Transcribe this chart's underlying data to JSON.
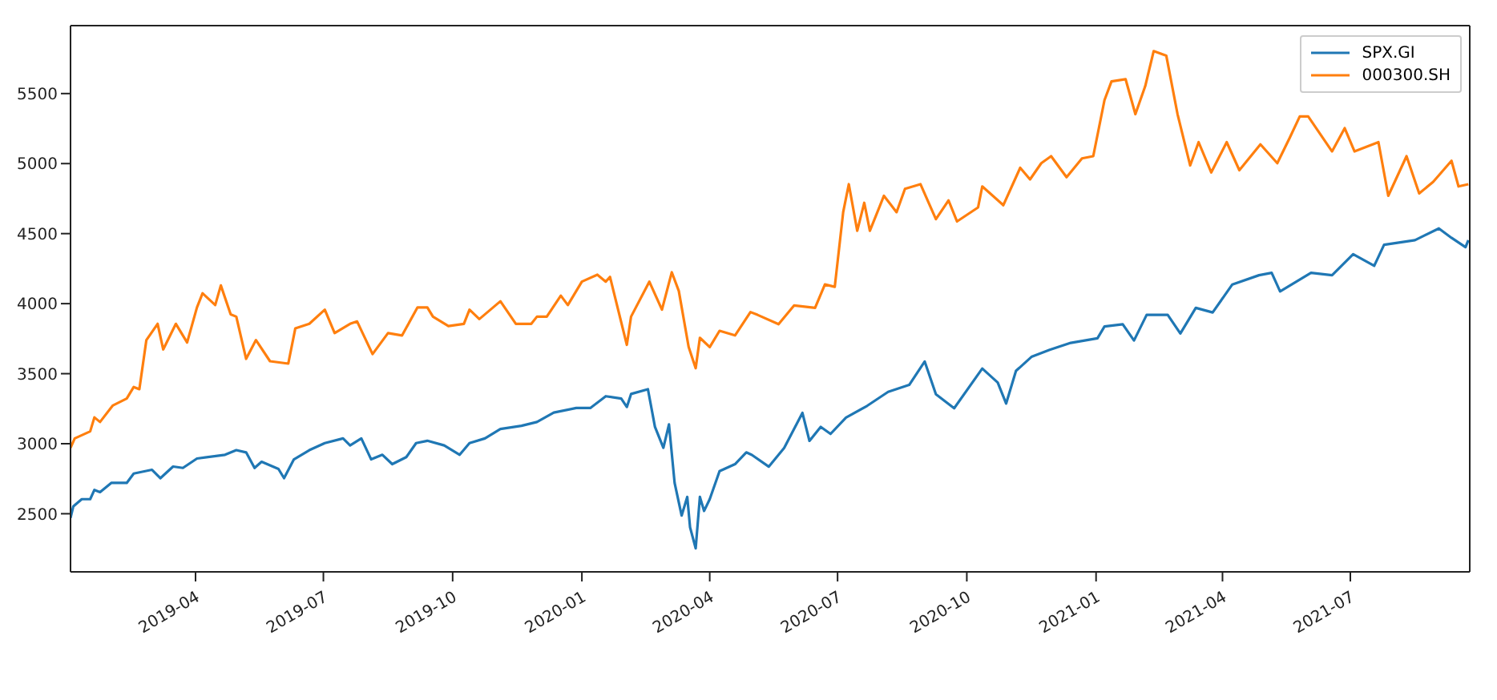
{
  "chart_data": {
    "type": "line",
    "xlim": [
      "2019-01-02",
      "2021-09-24"
    ],
    "ylim": [
      2085,
      5985
    ],
    "xticks": [
      {
        "value": "2019-04-01",
        "label": "2019-04"
      },
      {
        "value": "2019-07-01",
        "label": "2019-07"
      },
      {
        "value": "2019-10-01",
        "label": "2019-10"
      },
      {
        "value": "2020-01-01",
        "label": "2020-01"
      },
      {
        "value": "2020-04-01",
        "label": "2020-04"
      },
      {
        "value": "2020-07-01",
        "label": "2020-07"
      },
      {
        "value": "2020-10-01",
        "label": "2020-10"
      },
      {
        "value": "2021-01-01",
        "label": "2021-01"
      },
      {
        "value": "2021-04-01",
        "label": "2021-04"
      },
      {
        "value": "2021-07-01",
        "label": "2021-07"
      }
    ],
    "yticks": [
      2500,
      3000,
      3500,
      4000,
      4500,
      5000,
      5500
    ],
    "legend": "top right",
    "marker": "none",
    "line_style": "solid",
    "series": [
      {
        "name": "SPX.GI",
        "color": "#1f77b4",
        "x": [
          "2019-01-02",
          "2019-01-04",
          "2019-01-10",
          "2019-01-16",
          "2019-01-19",
          "2019-01-23",
          "2019-01-31",
          "2019-02-11",
          "2019-02-16",
          "2019-03-01",
          "2019-03-07",
          "2019-03-16",
          "2019-03-23",
          "2019-04-02",
          "2019-04-22",
          "2019-04-30",
          "2019-05-07",
          "2019-05-13",
          "2019-05-18",
          "2019-05-30",
          "2019-06-03",
          "2019-06-10",
          "2019-06-21",
          "2019-07-02",
          "2019-07-15",
          "2019-07-20",
          "2019-07-28",
          "2019-08-04",
          "2019-08-12",
          "2019-08-19",
          "2019-08-29",
          "2019-09-05",
          "2019-09-13",
          "2019-09-25",
          "2019-10-06",
          "2019-10-13",
          "2019-10-24",
          "2019-11-04",
          "2019-11-19",
          "2019-11-30",
          "2019-12-12",
          "2019-12-28",
          "2020-01-07",
          "2020-01-18",
          "2020-01-29",
          "2020-02-02",
          "2020-02-05",
          "2020-02-17",
          "2020-02-22",
          "2020-02-28",
          "2020-03-03",
          "2020-03-07",
          "2020-03-12",
          "2020-03-16",
          "2020-03-18",
          "2020-03-22",
          "2020-03-25",
          "2020-03-28",
          "2020-04-01",
          "2020-04-08",
          "2020-04-19",
          "2020-04-27",
          "2020-05-01",
          "2020-05-13",
          "2020-05-24",
          "2020-06-06",
          "2020-06-11",
          "2020-06-19",
          "2020-06-26",
          "2020-07-07",
          "2020-07-22",
          "2020-08-06",
          "2020-08-21",
          "2020-09-01",
          "2020-09-09",
          "2020-09-22",
          "2020-10-12",
          "2020-10-23",
          "2020-10-29",
          "2020-11-05",
          "2020-11-16",
          "2020-11-29",
          "2020-12-14",
          "2021-01-02",
          "2021-01-07",
          "2021-01-20",
          "2021-01-28",
          "2021-02-06",
          "2021-02-21",
          "2021-03-02",
          "2021-03-13",
          "2021-03-25",
          "2021-04-08",
          "2021-04-27",
          "2021-05-06",
          "2021-05-12",
          "2021-06-03",
          "2021-06-18",
          "2021-07-03",
          "2021-07-18",
          "2021-07-25",
          "2021-08-16",
          "2021-09-02",
          "2021-09-11",
          "2021-09-21",
          "2021-09-23"
        ],
        "values": [
          2470,
          2553,
          2604,
          2604,
          2670,
          2654,
          2720,
          2720,
          2787,
          2814,
          2754,
          2837,
          2827,
          2894,
          2921,
          2954,
          2938,
          2827,
          2871,
          2820,
          2754,
          2888,
          2954,
          3004,
          3038,
          2988,
          3038,
          2888,
          2921,
          2854,
          2904,
          3004,
          3021,
          2988,
          2921,
          3004,
          3038,
          3105,
          3128,
          3155,
          3222,
          3255,
          3255,
          3339,
          3322,
          3262,
          3355,
          3389,
          3121,
          2971,
          3138,
          2720,
          2487,
          2620,
          2403,
          2253,
          2620,
          2520,
          2604,
          2804,
          2854,
          2938,
          2920,
          2836,
          2970,
          3220,
          3020,
          3120,
          3070,
          3187,
          3270,
          3370,
          3420,
          3587,
          3353,
          3253,
          3537,
          3437,
          3287,
          3520,
          3620,
          3670,
          3720,
          3753,
          3837,
          3853,
          3737,
          3920,
          3920,
          3787,
          3970,
          3937,
          4137,
          4203,
          4220,
          4087,
          4220,
          4203,
          4353,
          4270,
          4420,
          4453,
          4537,
          4470,
          4403,
          4453
        ]
      },
      {
        "name": "000300.SH",
        "color": "#ff7f0e",
        "x": [
          "2019-01-02",
          "2019-01-05",
          "2019-01-16",
          "2019-01-19",
          "2019-01-23",
          "2019-02-01",
          "2019-02-11",
          "2019-02-16",
          "2019-02-20",
          "2019-02-25",
          "2019-03-05",
          "2019-03-09",
          "2019-03-18",
          "2019-03-26",
          "2019-04-02",
          "2019-04-06",
          "2019-04-15",
          "2019-04-19",
          "2019-04-26",
          "2019-04-30",
          "2019-05-07",
          "2019-05-14",
          "2019-05-24",
          "2019-06-06",
          "2019-06-11",
          "2019-06-21",
          "2019-07-02",
          "2019-07-09",
          "2019-07-20",
          "2019-07-25",
          "2019-08-05",
          "2019-08-16",
          "2019-08-26",
          "2019-09-06",
          "2019-09-13",
          "2019-09-17",
          "2019-09-28",
          "2019-10-09",
          "2019-10-13",
          "2019-10-20",
          "2019-11-04",
          "2019-11-15",
          "2019-11-26",
          "2019-11-30",
          "2019-12-07",
          "2019-12-17",
          "2019-12-22",
          "2020-01-01",
          "2020-01-12",
          "2020-01-18",
          "2020-01-21",
          "2020-02-02",
          "2020-02-05",
          "2020-02-18",
          "2020-02-27",
          "2020-03-05",
          "2020-03-10",
          "2020-03-17",
          "2020-03-22",
          "2020-03-25",
          "2020-04-01",
          "2020-04-08",
          "2020-04-19",
          "2020-04-30",
          "2020-05-05",
          "2020-05-20",
          "2020-05-31",
          "2020-06-15",
          "2020-06-22",
          "2020-06-29",
          "2020-07-05",
          "2020-07-09",
          "2020-07-15",
          "2020-07-20",
          "2020-07-24",
          "2020-08-03",
          "2020-08-12",
          "2020-08-18",
          "2020-08-29",
          "2020-09-09",
          "2020-09-18",
          "2020-09-24",
          "2020-10-09",
          "2020-10-12",
          "2020-10-27",
          "2020-11-08",
          "2020-11-15",
          "2020-11-23",
          "2020-11-30",
          "2020-12-11",
          "2020-12-22",
          "2020-12-30",
          "2021-01-07",
          "2021-01-12",
          "2021-01-22",
          "2021-01-29",
          "2021-02-05",
          "2021-02-11",
          "2021-02-20",
          "2021-02-28",
          "2021-03-09",
          "2021-03-15",
          "2021-03-24",
          "2021-04-04",
          "2021-04-13",
          "2021-04-28",
          "2021-05-10",
          "2021-05-19",
          "2021-05-26",
          "2021-06-01",
          "2021-06-18",
          "2021-06-27",
          "2021-07-04",
          "2021-07-21",
          "2021-07-28",
          "2021-08-10",
          "2021-08-19",
          "2021-08-29",
          "2021-09-11",
          "2021-09-16",
          "2021-09-23"
        ],
        "values": [
          2971,
          3038,
          3088,
          3188,
          3155,
          3272,
          3322,
          3405,
          3389,
          3740,
          3856,
          3673,
          3856,
          3723,
          3973,
          4074,
          3990,
          4130,
          3923,
          3907,
          3606,
          3740,
          3589,
          3572,
          3823,
          3856,
          3957,
          3790,
          3856,
          3873,
          3640,
          3790,
          3773,
          3973,
          3973,
          3907,
          3840,
          3856,
          3957,
          3890,
          4017,
          3856,
          3856,
          3907,
          3907,
          4057,
          3990,
          4157,
          4207,
          4157,
          4191,
          3706,
          3907,
          4157,
          3957,
          4224,
          4090,
          3690,
          3539,
          3756,
          3690,
          3806,
          3773,
          3940,
          3920,
          3853,
          3987,
          3970,
          4137,
          4120,
          4653,
          4853,
          4520,
          4720,
          4520,
          4770,
          4653,
          4820,
          4853,
          4603,
          4737,
          4587,
          4687,
          4837,
          4703,
          4970,
          4887,
          5003,
          5053,
          4903,
          5037,
          5053,
          5453,
          5587,
          5603,
          5353,
          5553,
          5803,
          5770,
          5353,
          4987,
          5153,
          4937,
          5153,
          4953,
          5137,
          5003,
          5187,
          5337,
          5337,
          5087,
          5253,
          5087,
          5153,
          4770,
          5053,
          4787,
          4870,
          5020,
          4837,
          4853
        ]
      }
    ]
  }
}
